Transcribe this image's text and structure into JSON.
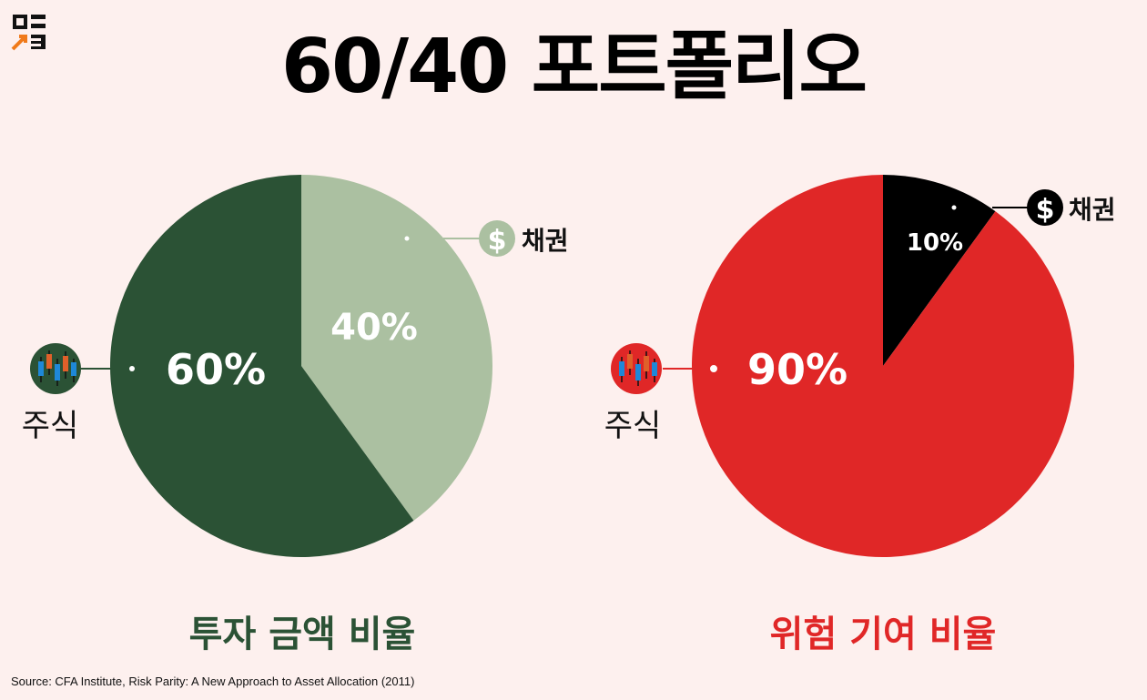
{
  "title": "60/40 포트폴리오",
  "colors": {
    "left_stock": "#2b5235",
    "left_bond": "#abc0a1",
    "right_stock": "#e02727",
    "right_bond": "#000000",
    "left_caption": "#2b5235",
    "right_caption": "#e02727"
  },
  "chart_data": [
    {
      "type": "pie",
      "title": "투자 금액 비율",
      "labels": [
        "주식",
        "채권"
      ],
      "values": [
        60,
        40
      ],
      "value_labels": [
        "60%",
        "40%"
      ],
      "colors": [
        "#2b5235",
        "#abc0a1"
      ]
    },
    {
      "type": "pie",
      "title": "위험 기여 비율",
      "labels": [
        "주식",
        "채권"
      ],
      "values": [
        90,
        10
      ],
      "value_labels": [
        "90%",
        "10%"
      ],
      "colors": [
        "#e02727",
        "#000000"
      ]
    }
  ],
  "icons": {
    "stock": "candlestick-chart-icon",
    "bond": "dollar-coin-icon",
    "logo": "brand-logo-icon"
  },
  "source": "Source: CFA Institute, Risk Parity: A New Approach to Asset Allocation (2011)"
}
